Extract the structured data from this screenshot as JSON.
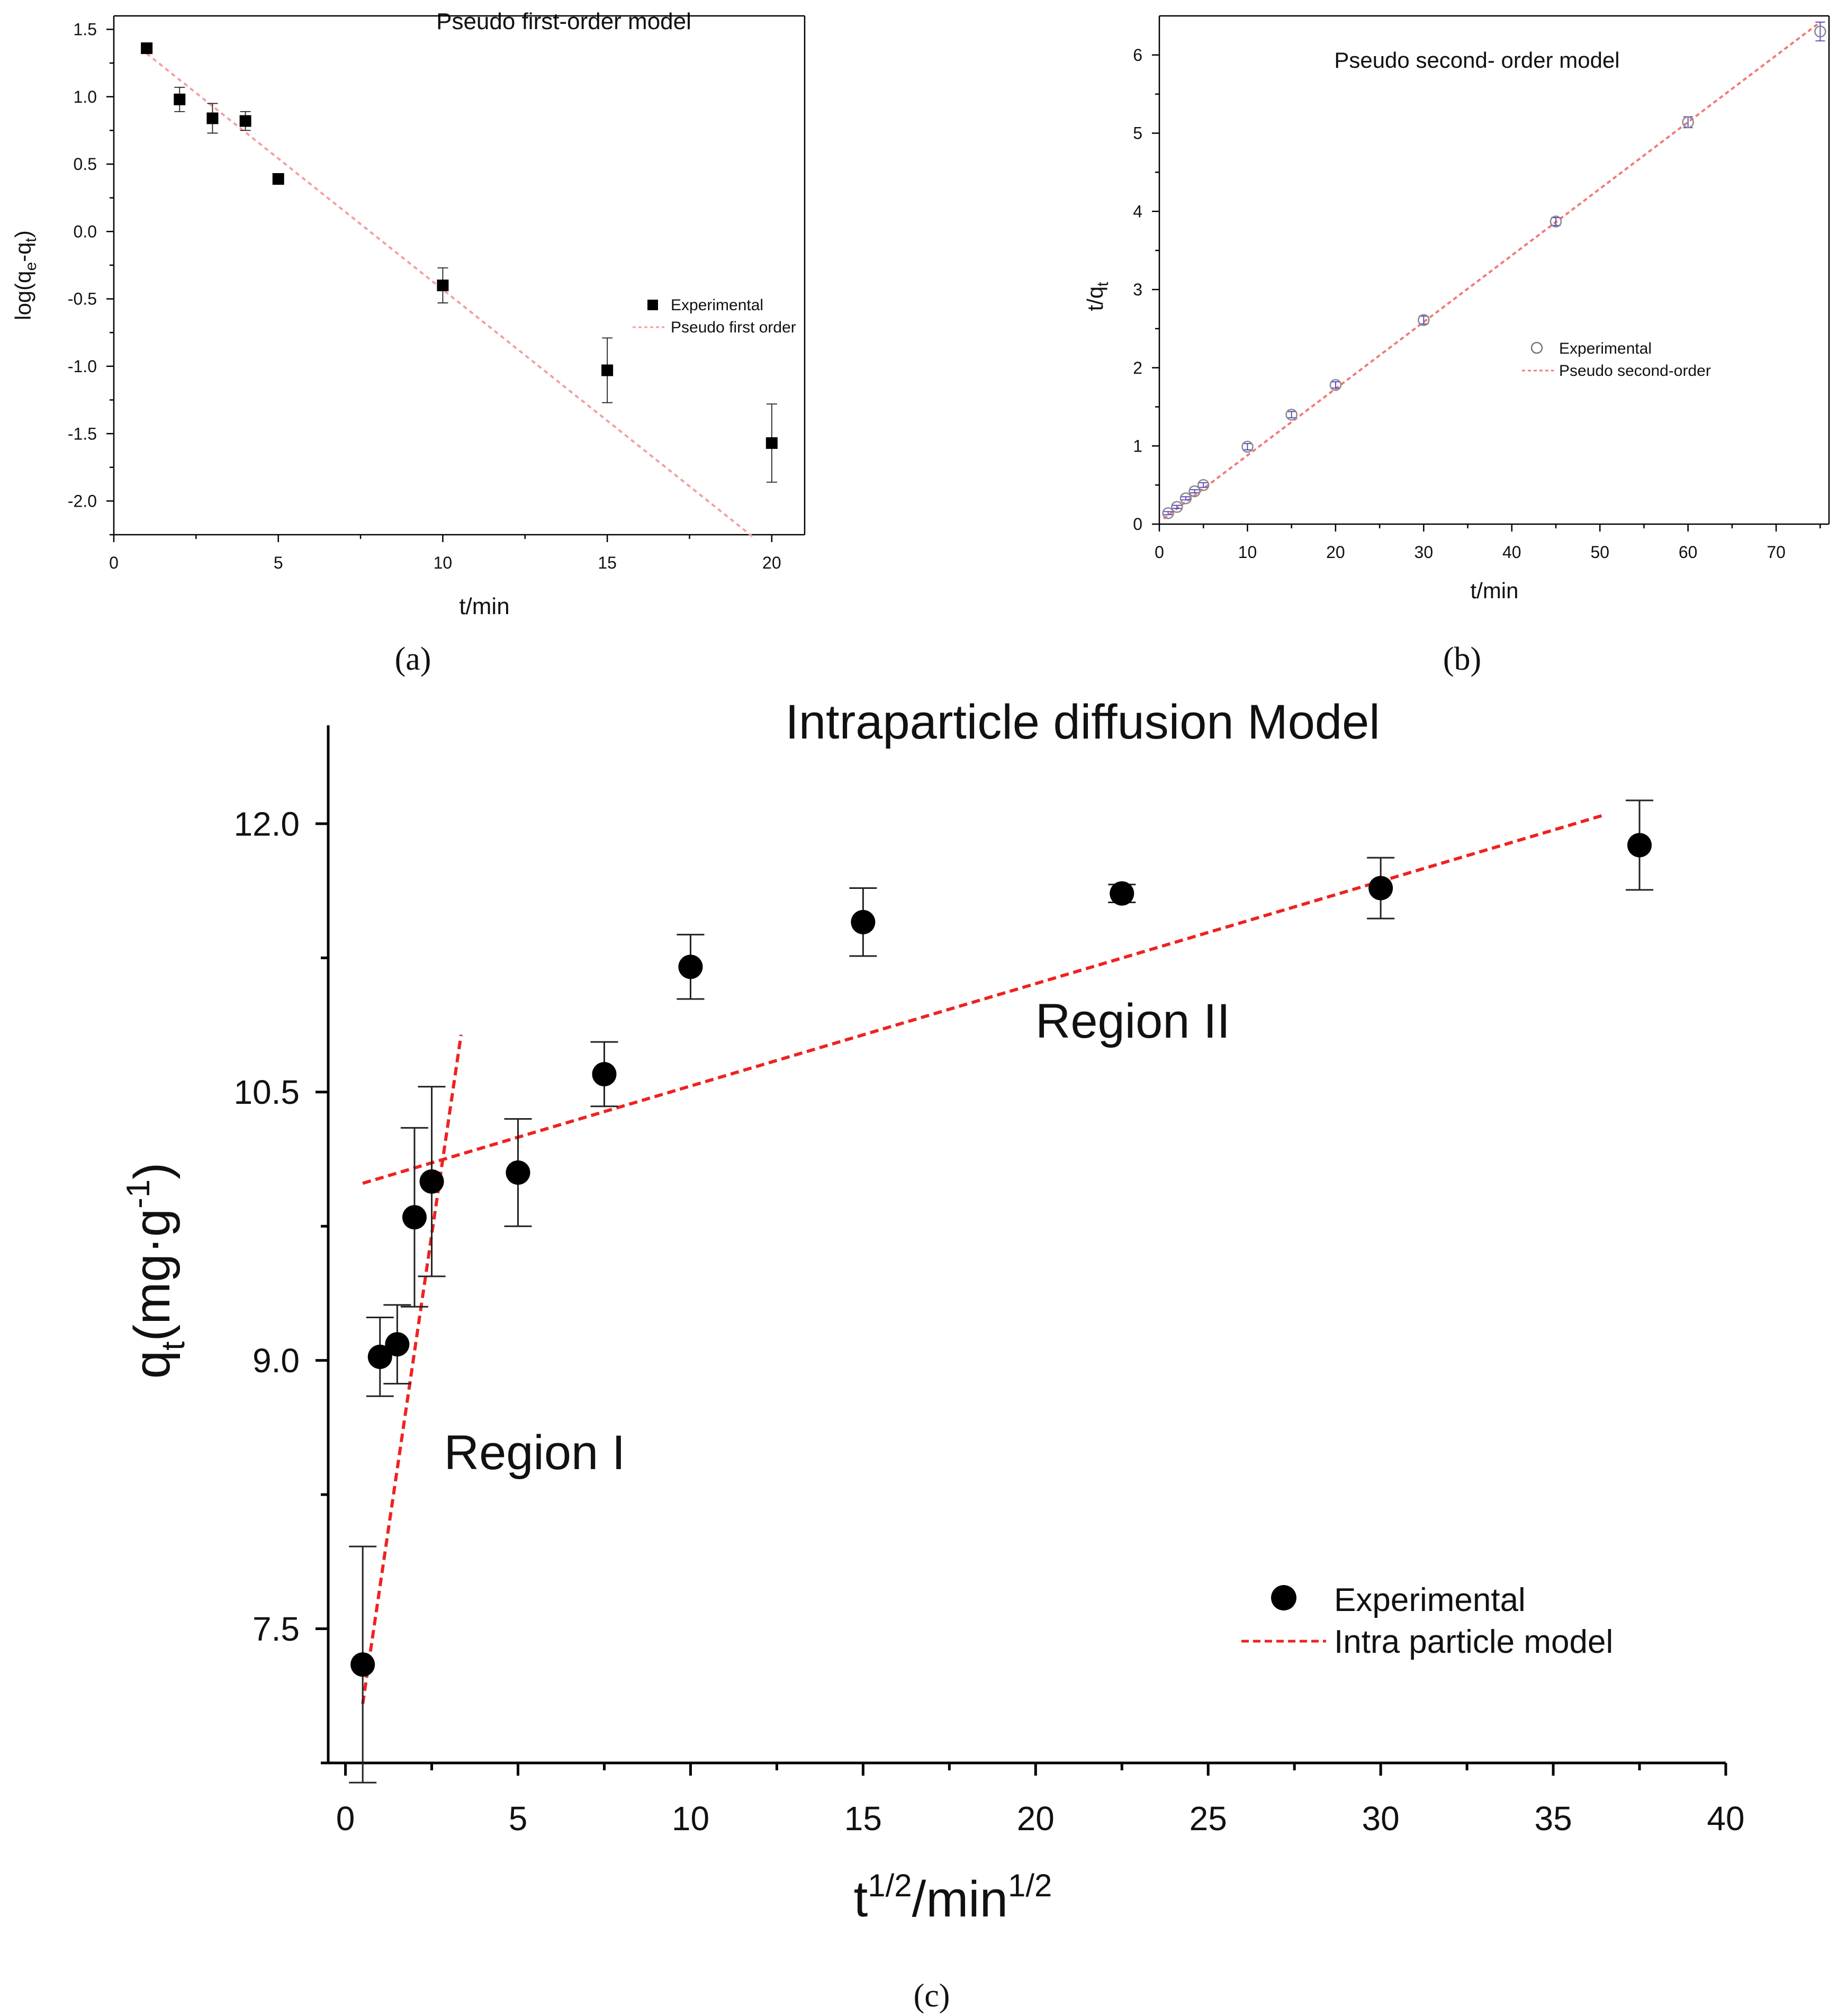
{
  "colors": {
    "fit_a": "#f4a0a0",
    "fit_b": "#f07a7a",
    "fit_c": "#ee2222",
    "marker_b": "#4a3fc9",
    "ink": "#000000"
  },
  "chart_data": [
    {
      "panel": "(a)",
      "type": "scatter",
      "title": "Pseudo first-order model",
      "xlabel": "t/min",
      "ylabel": "log(q_e-q_t)",
      "ylabel_parts": {
        "pre": "log(q",
        "sub1": "e",
        "mid": "-q",
        "sub2": "t",
        "post": ")"
      },
      "xlim": [
        0,
        21
      ],
      "ylim": [
        -2.25,
        1.6
      ],
      "xticks": [
        0,
        5,
        10,
        15,
        20
      ],
      "yticks": [
        -2.0,
        -1.5,
        -1.0,
        -0.5,
        0.0,
        0.5,
        1.0,
        1.5
      ],
      "ytick_labels": [
        "-2.0",
        "-1.5",
        "-1.0",
        "-0.5",
        "0.0",
        "0.5",
        "1.0",
        "1.5"
      ],
      "series": [
        {
          "name": "Experimental",
          "x": [
            1,
            2,
            3,
            4,
            5,
            10,
            15,
            20
          ],
          "y": [
            1.36,
            0.98,
            0.84,
            0.82,
            0.39,
            -0.4,
            -1.03,
            -1.57
          ],
          "err": [
            0,
            0.09,
            0.11,
            0.07,
            0,
            0.13,
            0.24,
            0.29
          ]
        },
        {
          "name": "Pseudo first order",
          "fit_x": [
            1,
            19.5
          ],
          "fit_y": [
            1.32,
            -2.28
          ]
        }
      ],
      "legend": "center-right"
    },
    {
      "panel": "(b)",
      "type": "scatter",
      "title": "Pseudo second- order model",
      "xlabel": "t/min",
      "ylabel": "t/q_t",
      "ylabel_parts": {
        "pre": "t/q",
        "sub": "t"
      },
      "xlim": [
        0,
        76
      ],
      "ylim": [
        0,
        6.5
      ],
      "xticks": [
        0,
        10,
        20,
        30,
        40,
        50,
        60,
        70
      ],
      "yticks": [
        0,
        1,
        2,
        3,
        4,
        5,
        6
      ],
      "ytick_labels": [
        "0",
        "1",
        "2",
        "3",
        "4",
        "5",
        "6"
      ],
      "series": [
        {
          "name": "Experimental",
          "x": [
            1,
            2,
            3,
            4,
            5,
            10,
            15,
            20,
            30,
            45,
            60,
            75
          ],
          "y": [
            0.14,
            0.22,
            0.33,
            0.42,
            0.5,
            0.99,
            1.4,
            1.78,
            2.61,
            3.87,
            5.14,
            6.3
          ],
          "err": [
            0.02,
            0.02,
            0.02,
            0.02,
            0.03,
            0.04,
            0.04,
            0.04,
            0.05,
            0.05,
            0.07,
            0.12
          ]
        },
        {
          "name": "Pseudo second-order",
          "fit_x": [
            0.5,
            75
          ],
          "fit_y": [
            0.07,
            6.42
          ]
        }
      ],
      "legend": "center-right"
    },
    {
      "panel": "(c)",
      "type": "scatter",
      "title": "Intraparticle diffusion Model",
      "xlabel": "t^1/2/min^1/2",
      "xlabel_parts": {
        "a": "t",
        "a_sup": "1/2",
        "b": "/min",
        "b_sup": "1/2"
      },
      "ylabel": "q_t(mg·g^-1)",
      "ylabel_parts": {
        "pre": "q",
        "sub": "t",
        "mid": "(mg·g",
        "sup": "-1",
        "post": ")"
      },
      "xlim": [
        -0.5,
        40
      ],
      "ylim": [
        6.75,
        12.55
      ],
      "xticks": [
        0,
        5,
        10,
        15,
        20,
        25,
        30,
        35,
        40
      ],
      "yticks": [
        7.5,
        9.0,
        10.5,
        12.0
      ],
      "ytick_labels": [
        "7.5",
        "9.0",
        "10.5",
        "12.0"
      ],
      "series": [
        {
          "name": "Experimental",
          "x": [
            0.5,
            1.0,
            1.5,
            2.0,
            2.5,
            5.0,
            7.5,
            10.0,
            15.0,
            22.5,
            30.0,
            37.5
          ],
          "y": [
            7.3,
            9.02,
            9.09,
            9.8,
            10.0,
            10.05,
            10.6,
            11.2,
            11.45,
            11.61,
            11.64,
            11.88
          ],
          "err": [
            0.66,
            0.22,
            0.22,
            0.5,
            0.53,
            0.3,
            0.18,
            0.18,
            0.19,
            0.05,
            0.17,
            0.25
          ]
        },
        {
          "name": "Intra particle model",
          "fit": [
            {
              "x": [
                0.5,
                36.5
              ],
              "y": [
                9.99,
                12.05
              ]
            },
            {
              "x": [
                0.5,
                3.35
              ],
              "y": [
                7.08,
                10.82
              ]
            }
          ]
        }
      ],
      "annotations": [
        "Region I",
        "Region II"
      ],
      "legend": "lower-right"
    }
  ]
}
